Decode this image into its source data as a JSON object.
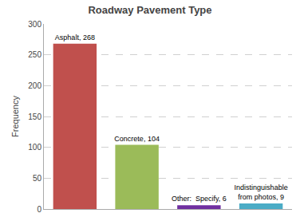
{
  "chart_data": {
    "type": "bar",
    "title": "Roadway Pavement Type",
    "ylabel": "Frequency",
    "categories": [
      "Asphalt",
      "Concrete",
      "Other:  Specify",
      "Indistinguishable\nfrom photos"
    ],
    "values": [
      268,
      104,
      6,
      9
    ],
    "value_labels": [
      "Asphalt, 268",
      "Concrete, 104",
      "Other:  Specify, 6",
      "Indistinguishable\nfrom photos, 9"
    ],
    "data_labels": true,
    "colors": [
      "#c0504d",
      "#9bbb59",
      "#7030a0",
      "#4bacc6"
    ],
    "ylim": [
      0,
      300
    ],
    "yticks": [
      0,
      50,
      100,
      150,
      200,
      250,
      300
    ],
    "grid": true,
    "tick_labels": "y"
  }
}
